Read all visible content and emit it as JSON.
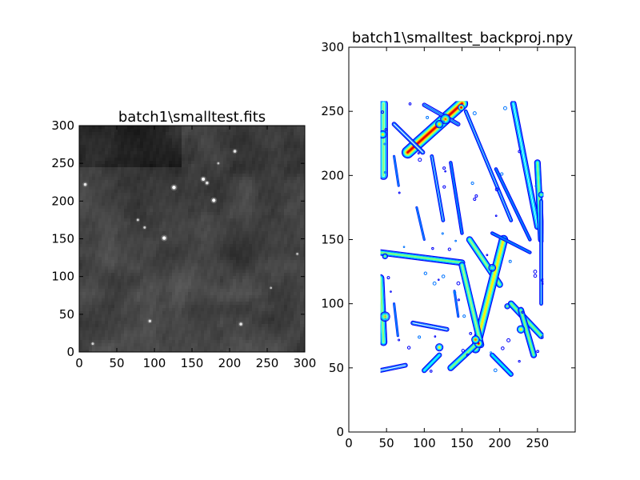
{
  "chart_data": [
    {
      "type": "heatmap",
      "title": "batch1\\smalltest.fits",
      "xlabel": "",
      "ylabel": "",
      "xlim": [
        0,
        300
      ],
      "ylim": [
        0,
        300
      ],
      "xticks": [
        "0",
        "50",
        "100",
        "150",
        "200",
        "250",
        "300"
      ],
      "yticks": [
        "0",
        "50",
        "100",
        "150",
        "200",
        "250",
        "300"
      ],
      "colormap": "gray",
      "background_color": "#3c3c3c",
      "point_sources": [
        {
          "x": 8,
          "y": 222,
          "brightness": 0.7
        },
        {
          "x": 126,
          "y": 218,
          "brightness": 1.0
        },
        {
          "x": 165,
          "y": 229,
          "brightness": 0.9
        },
        {
          "x": 170,
          "y": 224,
          "brightness": 0.7
        },
        {
          "x": 179,
          "y": 201,
          "brightness": 0.95
        },
        {
          "x": 113,
          "y": 151,
          "brightness": 1.0
        },
        {
          "x": 78,
          "y": 175,
          "brightness": 0.5
        },
        {
          "x": 87,
          "y": 165,
          "brightness": 0.5
        },
        {
          "x": 207,
          "y": 266,
          "brightness": 0.7
        },
        {
          "x": 94,
          "y": 41,
          "brightness": 0.6
        },
        {
          "x": 215,
          "y": 37,
          "brightness": 0.7
        },
        {
          "x": 18,
          "y": 11,
          "brightness": 0.5
        },
        {
          "x": 290,
          "y": 130,
          "brightness": 0.4
        },
        {
          "x": 185,
          "y": 250,
          "brightness": 0.4
        },
        {
          "x": 255,
          "y": 85,
          "brightness": 0.35
        }
      ]
    },
    {
      "type": "contour",
      "title": "batch1\\smalltest_backproj.npy",
      "xlabel": "",
      "ylabel": "",
      "xlim": [
        0,
        300
      ],
      "ylim": [
        0,
        300
      ],
      "xticks": [
        "0",
        "50",
        "100",
        "150",
        "200",
        "250"
      ],
      "yticks": [
        "0",
        "50",
        "100",
        "150",
        "200",
        "250",
        "300"
      ],
      "colormap": "jet",
      "data_extent": {
        "x": [
          42,
          258
        ],
        "y": [
          42,
          258
        ]
      },
      "features": [
        {
          "x1": 150,
          "y1": 256,
          "x2": 78,
          "y2": 218,
          "w": 9,
          "peak": 0.95
        },
        {
          "x1": 46,
          "y1": 256,
          "x2": 46,
          "y2": 200,
          "w": 7,
          "peak": 0.55
        },
        {
          "x1": 60,
          "y1": 240,
          "x2": 98,
          "y2": 218,
          "w": 4,
          "peak": 0.35
        },
        {
          "x1": 100,
          "y1": 255,
          "x2": 145,
          "y2": 240,
          "w": 4,
          "peak": 0.3
        },
        {
          "x1": 155,
          "y1": 250,
          "x2": 215,
          "y2": 165,
          "w": 3,
          "peak": 0.35
        },
        {
          "x1": 110,
          "y1": 215,
          "x2": 125,
          "y2": 165,
          "w": 3,
          "peak": 0.35
        },
        {
          "x1": 135,
          "y1": 210,
          "x2": 150,
          "y2": 155,
          "w": 3,
          "peak": 0.3
        },
        {
          "x1": 218,
          "y1": 256,
          "x2": 250,
          "y2": 160,
          "w": 5,
          "peak": 0.45
        },
        {
          "x1": 250,
          "y1": 210,
          "x2": 255,
          "y2": 150,
          "w": 5,
          "peak": 0.55
        },
        {
          "x1": 195,
          "y1": 205,
          "x2": 240,
          "y2": 150,
          "w": 3,
          "peak": 0.3
        },
        {
          "x1": 42,
          "y1": 140,
          "x2": 150,
          "y2": 132,
          "w": 5,
          "peak": 0.5
        },
        {
          "x1": 42,
          "y1": 120,
          "x2": 46,
          "y2": 70,
          "w": 6,
          "peak": 0.55
        },
        {
          "x1": 160,
          "y1": 150,
          "x2": 200,
          "y2": 115,
          "w": 5,
          "peak": 0.6
        },
        {
          "x1": 205,
          "y1": 150,
          "x2": 168,
          "y2": 65,
          "w": 7,
          "peak": 0.7
        },
        {
          "x1": 150,
          "y1": 130,
          "x2": 175,
          "y2": 68,
          "w": 5,
          "peak": 0.6
        },
        {
          "x1": 168,
          "y1": 68,
          "x2": 135,
          "y2": 50,
          "w": 5,
          "peak": 0.55
        },
        {
          "x1": 120,
          "y1": 60,
          "x2": 100,
          "y2": 48,
          "w": 4,
          "peak": 0.45
        },
        {
          "x1": 215,
          "y1": 100,
          "x2": 255,
          "y2": 75,
          "w": 5,
          "peak": 0.55
        },
        {
          "x1": 228,
          "y1": 95,
          "x2": 245,
          "y2": 60,
          "w": 5,
          "peak": 0.5
        },
        {
          "x1": 42,
          "y1": 48,
          "x2": 75,
          "y2": 52,
          "w": 4,
          "peak": 0.35
        },
        {
          "x1": 85,
          "y1": 85,
          "x2": 130,
          "y2": 80,
          "w": 4,
          "peak": 0.35
        },
        {
          "x1": 255,
          "y1": 180,
          "x2": 255,
          "y2": 100,
          "w": 3,
          "peak": 0.35
        },
        {
          "x1": 190,
          "y1": 60,
          "x2": 215,
          "y2": 45,
          "w": 4,
          "peak": 0.4
        },
        {
          "x1": 190,
          "y1": 155,
          "x2": 240,
          "y2": 140,
          "w": 3,
          "peak": 0.3
        },
        {
          "x1": 90,
          "y1": 175,
          "x2": 100,
          "y2": 150,
          "w": 2,
          "peak": 0.25
        },
        {
          "x1": 60,
          "y1": 100,
          "x2": 65,
          "y2": 75,
          "w": 2,
          "peak": 0.25
        },
        {
          "x1": 140,
          "y1": 110,
          "x2": 145,
          "y2": 90,
          "w": 2,
          "peak": 0.25
        },
        {
          "x1": 60,
          "y1": 215,
          "x2": 66,
          "y2": 192,
          "w": 2,
          "peak": 0.25
        }
      ],
      "blobs": [
        {
          "x": 149,
          "y": 253,
          "r": 3,
          "peak": 1.0
        },
        {
          "x": 128,
          "y": 244,
          "r": 5,
          "peak": 0.85
        },
        {
          "x": 120,
          "y": 240,
          "r": 4,
          "peak": 0.7
        },
        {
          "x": 172,
          "y": 69,
          "r": 4,
          "peak": 0.95
        },
        {
          "x": 168,
          "y": 72,
          "r": 4,
          "peak": 0.85
        },
        {
          "x": 45,
          "y": 232,
          "r": 4,
          "peak": 0.7
        },
        {
          "x": 48,
          "y": 90,
          "r": 5,
          "peak": 0.75
        },
        {
          "x": 228,
          "y": 80,
          "r": 4,
          "peak": 0.75
        },
        {
          "x": 120,
          "y": 66,
          "r": 4,
          "peak": 0.65
        },
        {
          "x": 190,
          "y": 128,
          "r": 4,
          "peak": 0.55
        },
        {
          "x": 255,
          "y": 185,
          "r": 3,
          "peak": 0.6
        },
        {
          "x": 48,
          "y": 137,
          "r": 3,
          "peak": 0.5
        },
        {
          "x": 210,
          "y": 98,
          "r": 3,
          "peak": 0.5
        }
      ]
    }
  ]
}
